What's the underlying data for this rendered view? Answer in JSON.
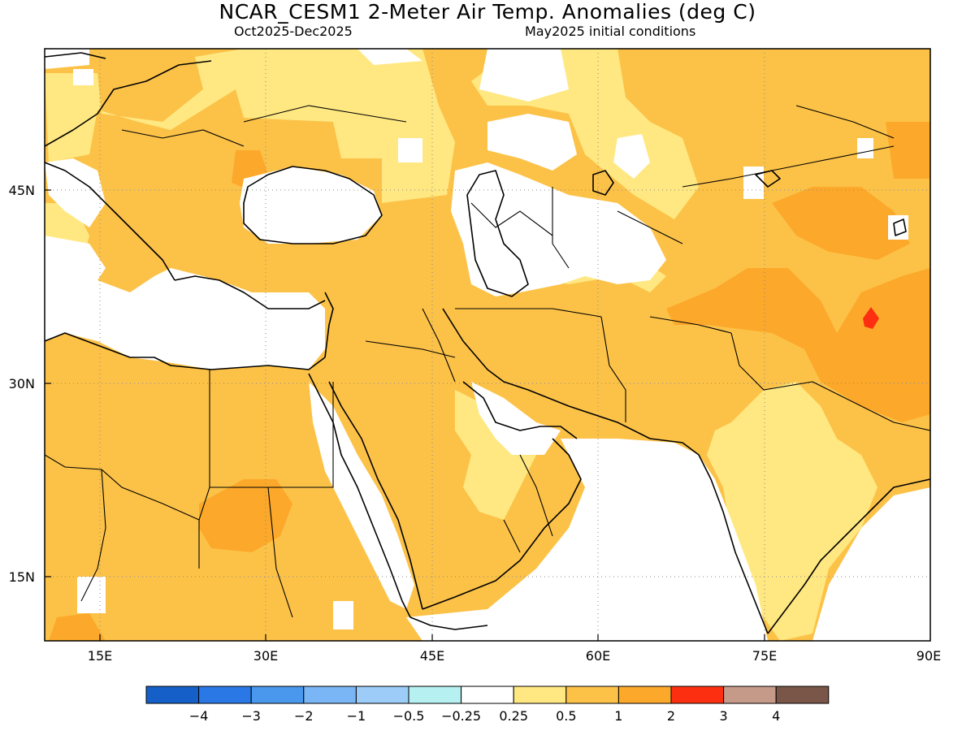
{
  "title": "NCAR_CESM1 2-Meter Air Temp. Anomalies (deg C)",
  "subtitle_left": "Oct2025-Dec2025",
  "subtitle_right": "May2025 initial conditions",
  "map": {
    "projection": "lat-lon",
    "lon_range": [
      10,
      90
    ],
    "lat_range": [
      10,
      56
    ],
    "grid": true,
    "lon_ticks": [
      "15E",
      "30E",
      "45E",
      "60E",
      "75E",
      "90E"
    ],
    "lat_ticks": [
      "45N",
      "30N",
      "15N"
    ]
  },
  "colors": {
    "c_neg4": "#1560c8",
    "c_neg3": "#2a78e6",
    "c_neg2": "#4a97ee",
    "c_neg1": "#7ab6f5",
    "c_neg05": "#9cccf7",
    "c_neg025": "#b6f0f0",
    "c_zero": "#ffffff",
    "c_025": "#ffe882",
    "c_05": "#fcc248",
    "c_1": "#fca82a",
    "c_2": "#fc3010",
    "c_3": "#c69a88",
    "c_4": "#7a5648"
  },
  "legend": {
    "labels": [
      "-4",
      "-3",
      "-2",
      "-1",
      "-0.5",
      "-0.25",
      "0.25",
      "0.5",
      "1",
      "2",
      "3",
      "4"
    ]
  }
}
